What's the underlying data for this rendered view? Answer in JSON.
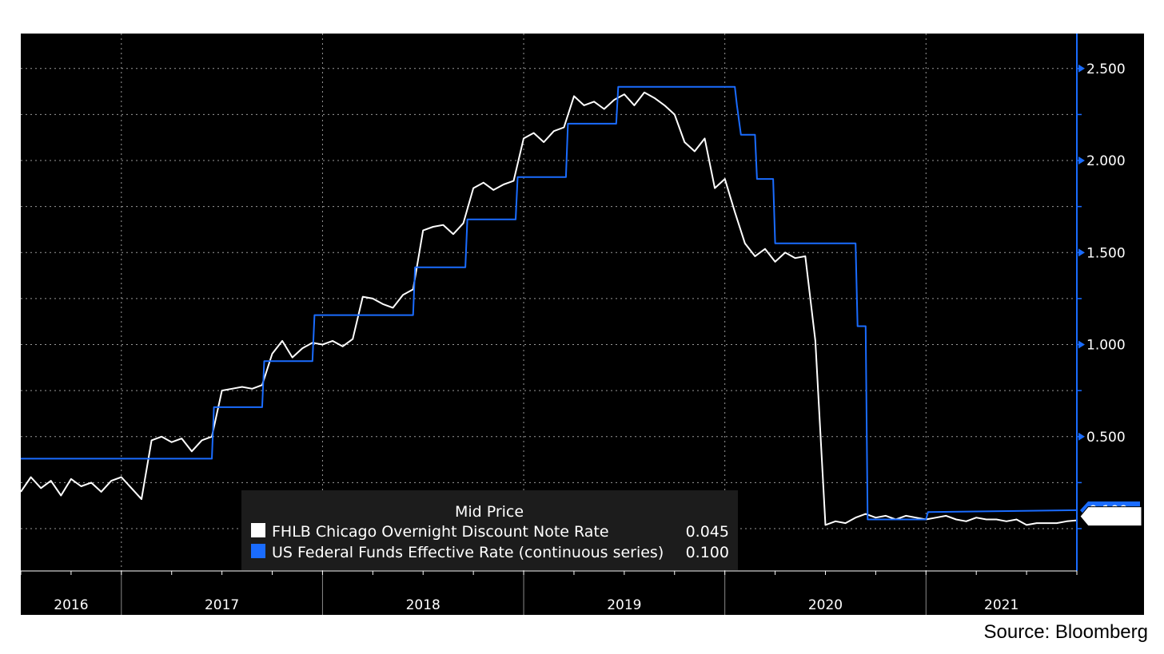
{
  "source_note": "Source: Bloomberg",
  "colors": {
    "background": "#000000",
    "fhlb": "#ffffff",
    "fedfunds": "#1a6cff",
    "grid": "#9a9a9a",
    "legend_bg": "#1c1c1c",
    "axis": "#1a6cff"
  },
  "chart_data": {
    "type": "line",
    "title": "",
    "xlabel": "",
    "ylabel": "",
    "ylim": [
      -0.23,
      2.69
    ],
    "y_ticks": [
      "2.500",
      "2.000",
      "1.500",
      "1.000",
      "0.500"
    ],
    "y_tick_values": [
      2.5,
      2.0,
      1.5,
      1.0,
      0.5
    ],
    "x_year_labels": [
      "2016",
      "2017",
      "2018",
      "2019",
      "2020",
      "2021"
    ],
    "x_range": [
      2016.0,
      2021.25
    ],
    "grid": true,
    "legend_title": "Mid Price",
    "legend_placement": "bottom-center",
    "series": [
      {
        "name": "FHLB Chicago Overnight Discount Note Rate",
        "last_value": "0.045",
        "last_label": "0.045",
        "x": [
          2016.0,
          2016.05,
          2016.1,
          2016.15,
          2016.2,
          2016.25,
          2016.3,
          2016.35,
          2016.4,
          2016.45,
          2016.5,
          2016.55,
          2016.6,
          2016.65,
          2016.7,
          2016.75,
          2016.8,
          2016.85,
          2016.9,
          2016.95,
          2017.0,
          2017.05,
          2017.1,
          2017.15,
          2017.2,
          2017.25,
          2017.3,
          2017.35,
          2017.4,
          2017.45,
          2017.5,
          2017.55,
          2017.6,
          2017.65,
          2017.7,
          2017.75,
          2017.8,
          2017.85,
          2017.9,
          2017.95,
          2018.0,
          2018.05,
          2018.1,
          2018.15,
          2018.2,
          2018.25,
          2018.3,
          2018.35,
          2018.4,
          2018.45,
          2018.5,
          2018.55,
          2018.6,
          2018.65,
          2018.7,
          2018.75,
          2018.8,
          2018.85,
          2018.9,
          2018.95,
          2019.0,
          2019.05,
          2019.1,
          2019.15,
          2019.2,
          2019.25,
          2019.3,
          2019.35,
          2019.4,
          2019.45,
          2019.5,
          2019.55,
          2019.6,
          2019.65,
          2019.7,
          2019.75,
          2019.8,
          2019.85,
          2019.9,
          2019.95,
          2020.0,
          2020.05,
          2020.1,
          2020.15,
          2020.2,
          2020.25,
          2020.3,
          2020.35,
          2020.4,
          2020.45,
          2020.5,
          2020.55,
          2020.6,
          2020.65,
          2020.7,
          2020.75,
          2020.8,
          2020.85,
          2020.9,
          2020.95,
          2021.0,
          2021.05,
          2021.1,
          2021.15,
          2021.2,
          2021.25
        ],
        "values": [
          0.2,
          0.28,
          0.22,
          0.26,
          0.18,
          0.27,
          0.23,
          0.25,
          0.2,
          0.26,
          0.28,
          0.22,
          0.16,
          0.48,
          0.5,
          0.47,
          0.49,
          0.42,
          0.48,
          0.5,
          0.75,
          0.76,
          0.77,
          0.76,
          0.78,
          0.95,
          1.02,
          0.93,
          0.98,
          1.01,
          1.0,
          1.02,
          0.99,
          1.03,
          1.26,
          1.25,
          1.22,
          1.2,
          1.27,
          1.3,
          1.62,
          1.64,
          1.65,
          1.6,
          1.66,
          1.85,
          1.88,
          1.84,
          1.87,
          1.89,
          2.12,
          2.15,
          2.1,
          2.16,
          2.18,
          2.35,
          2.3,
          2.32,
          2.28,
          2.33,
          2.36,
          2.3,
          2.37,
          2.34,
          2.3,
          2.25,
          2.1,
          2.05,
          2.12,
          1.85,
          1.9,
          1.72,
          1.55,
          1.48,
          1.52,
          1.45,
          1.5,
          1.47,
          1.48,
          1.02,
          0.02,
          0.04,
          0.03,
          0.06,
          0.08,
          0.06,
          0.07,
          0.05,
          0.07,
          0.06,
          0.05,
          0.06,
          0.07,
          0.05,
          0.04,
          0.06,
          0.05,
          0.05,
          0.04,
          0.05,
          0.02,
          0.03,
          0.03,
          0.03,
          0.04,
          0.045
        ]
      },
      {
        "name": "US Federal Funds Effective Rate (continuous series)",
        "last_value": "0.100",
        "last_label": "0.100",
        "x": [
          2016.0,
          2016.95,
          2016.96,
          2017.2,
          2017.21,
          2017.45,
          2017.46,
          2017.95,
          2017.96,
          2018.21,
          2018.22,
          2018.46,
          2018.47,
          2018.71,
          2018.72,
          2018.96,
          2018.97,
          2019.55,
          2019.56,
          2019.58,
          2019.65,
          2019.66,
          2019.74,
          2019.75,
          2020.15,
          2020.16,
          2020.2,
          2020.21,
          2020.5,
          2020.51,
          2021.25
        ],
        "values": [
          0.38,
          0.38,
          0.66,
          0.66,
          0.91,
          0.91,
          1.16,
          1.16,
          1.42,
          1.42,
          1.68,
          1.68,
          1.91,
          1.91,
          2.2,
          2.2,
          2.4,
          2.4,
          2.3,
          2.14,
          2.14,
          1.9,
          1.9,
          1.55,
          1.55,
          1.1,
          1.1,
          0.05,
          0.05,
          0.09,
          0.1
        ]
      }
    ]
  }
}
